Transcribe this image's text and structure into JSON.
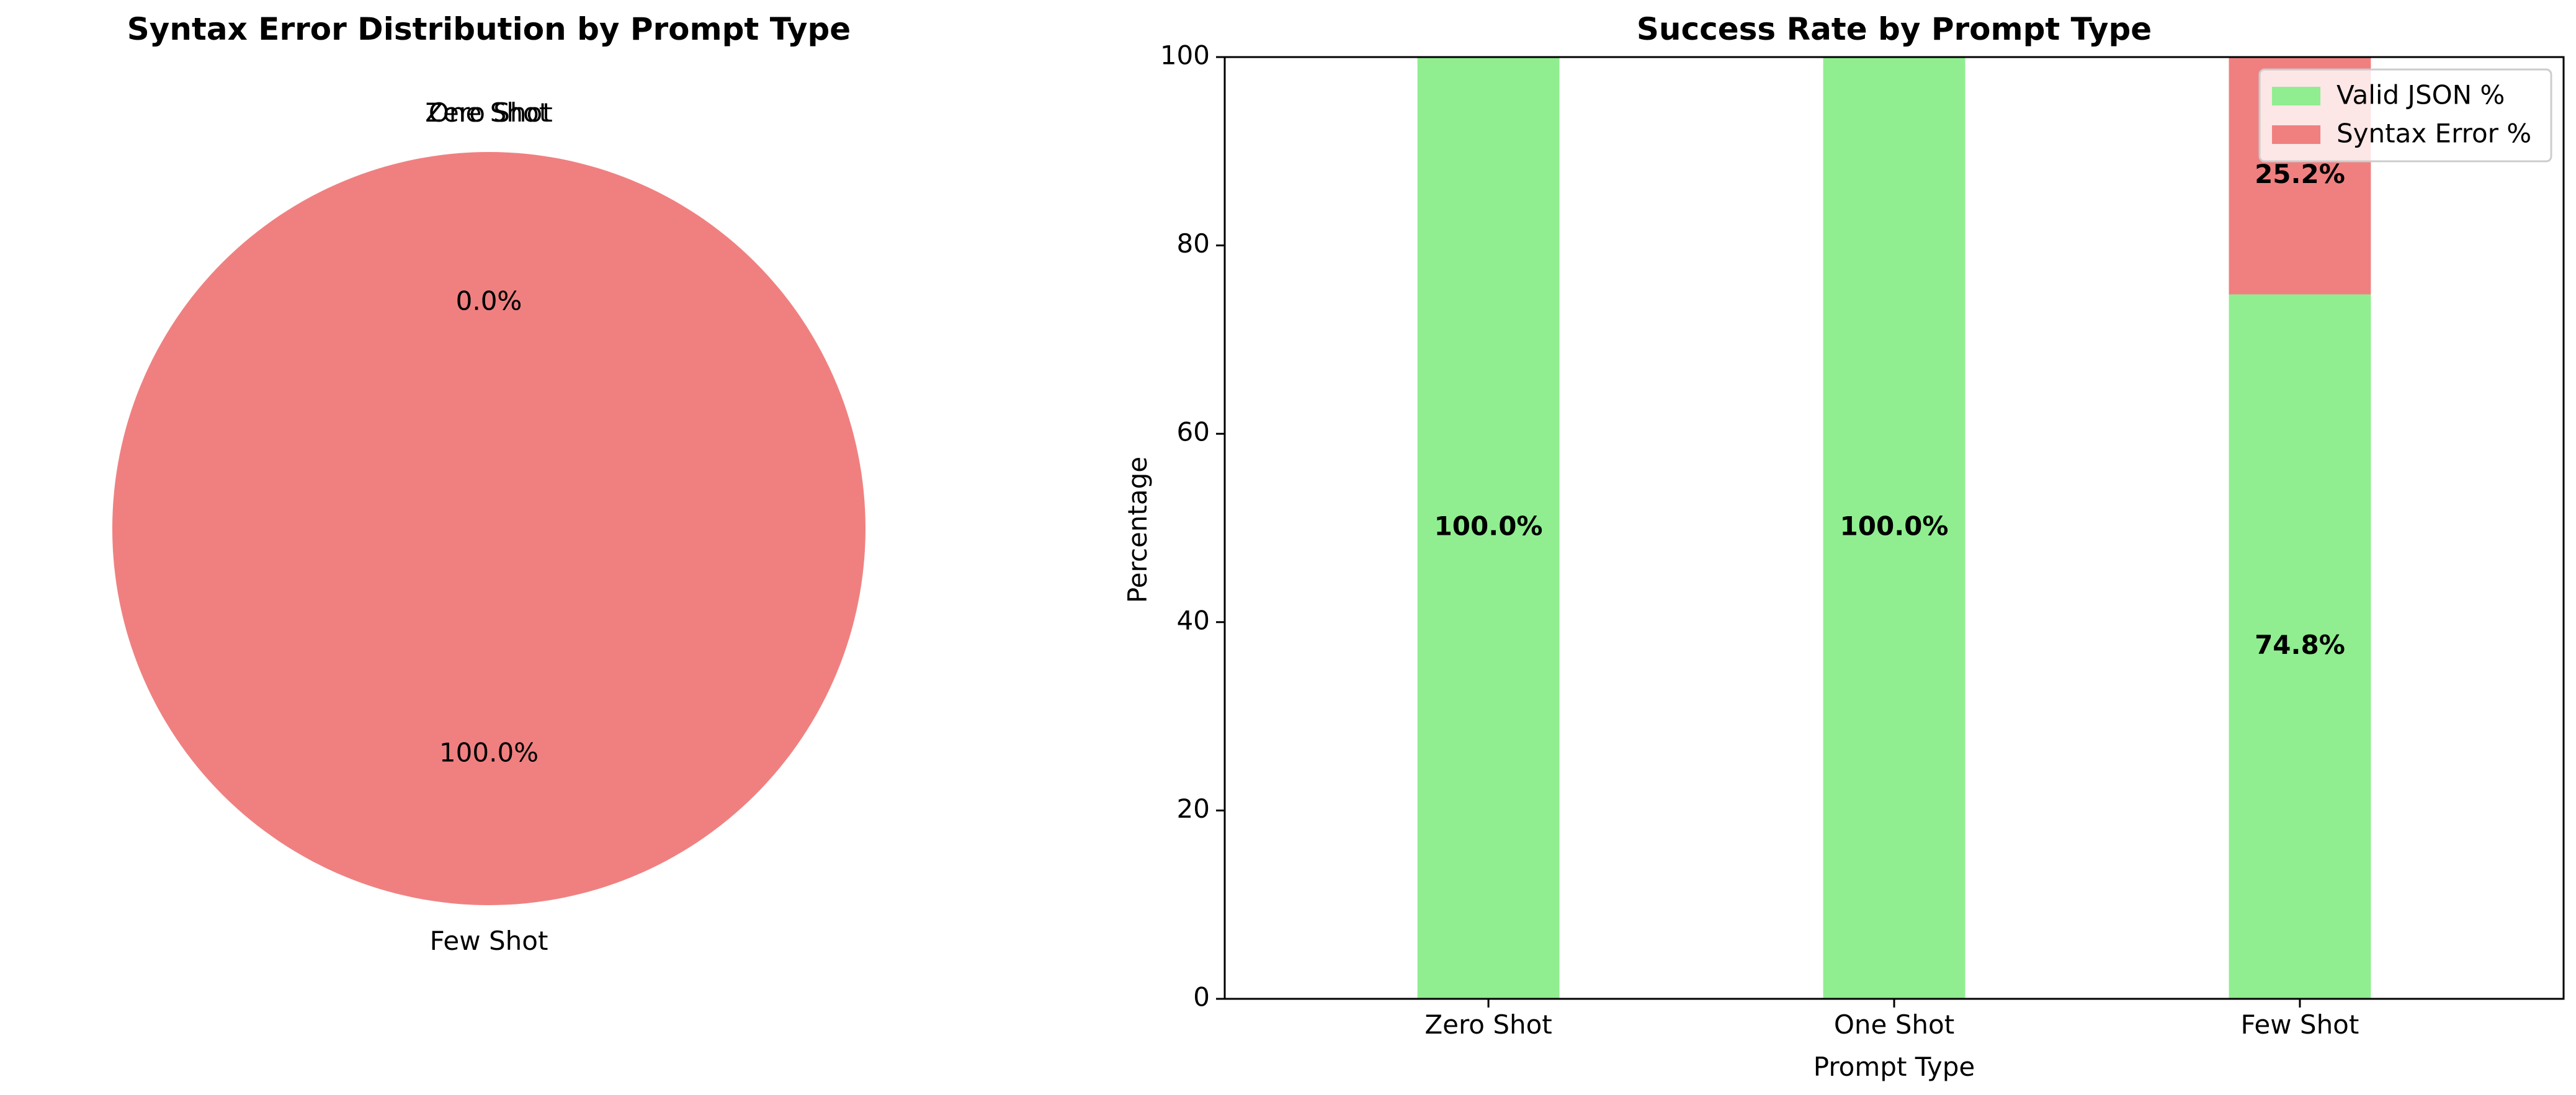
{
  "colors": {
    "valid": "#90ee90",
    "error": "#f08080",
    "axis": "#000000",
    "legend_border": "#cccccc"
  },
  "chart_data": [
    {
      "type": "pie",
      "title": "Syntax Error Distribution by Prompt Type",
      "labels": [
        "Zero Shot",
        "One Shot",
        "Few Shot"
      ],
      "values": [
        0.0,
        0.0,
        100.0
      ],
      "pct_labels": [
        "0.0%",
        "0.0%",
        "100.0%"
      ],
      "colors": [
        "#90ee90",
        "#87ceeb",
        "#f08080"
      ]
    },
    {
      "type": "bar",
      "stacked": true,
      "title": "Success Rate by Prompt Type",
      "xlabel": "Prompt Type",
      "ylabel": "Percentage",
      "categories": [
        "Zero Shot",
        "One Shot",
        "Few Shot"
      ],
      "ylim": [
        0,
        100
      ],
      "yticks": [
        0,
        20,
        40,
        60,
        80,
        100
      ],
      "series": [
        {
          "name": "Valid JSON %",
          "values": [
            100.0,
            100.0,
            74.8
          ],
          "labels": [
            "100.0%",
            "100.0%",
            "74.8%"
          ]
        },
        {
          "name": "Syntax Error %",
          "values": [
            0.0,
            0.0,
            25.2
          ],
          "labels": [
            "",
            "",
            "25.2%"
          ]
        }
      ],
      "legend_position": "upper right"
    }
  ]
}
